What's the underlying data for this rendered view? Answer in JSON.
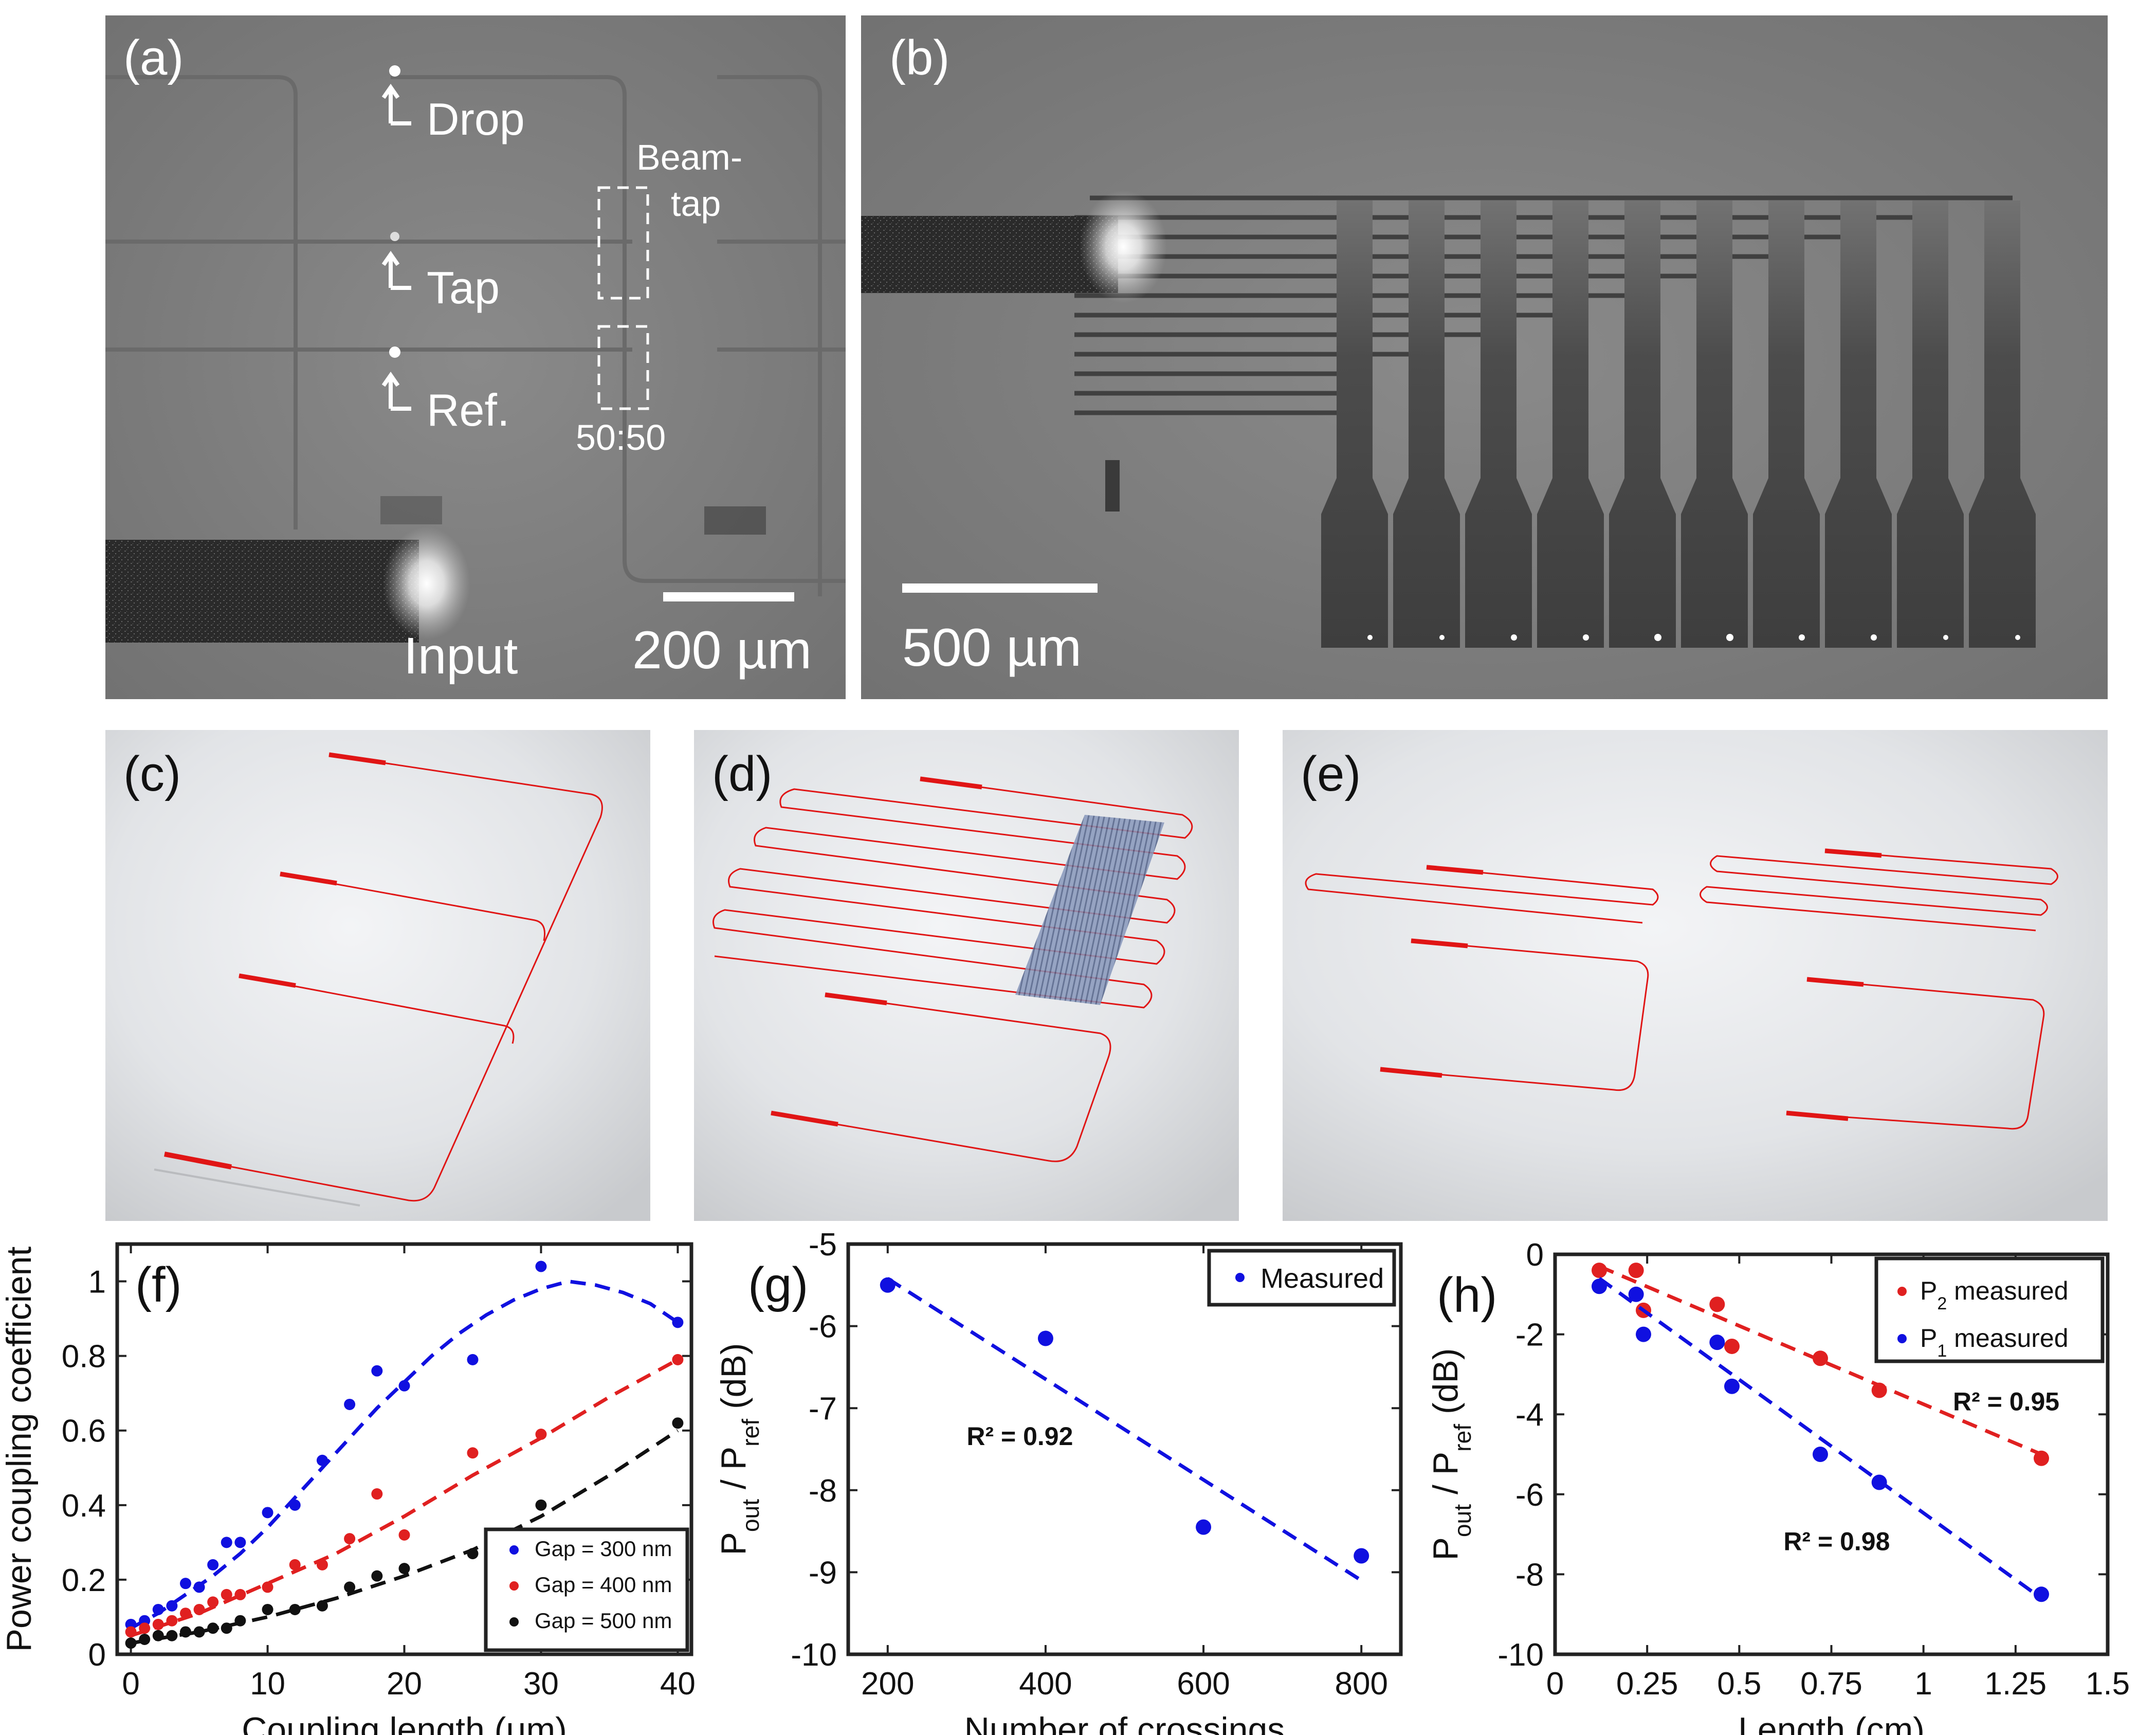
{
  "photos": {
    "a": {
      "tag": "(a)",
      "labels": {
        "drop": "Drop",
        "tap": "Tap",
        "ref": "Ref.",
        "input": "Input",
        "beam": "Beam-",
        "beam2": "tap",
        "split": "50:50"
      },
      "scalebar": "200 µm"
    },
    "b": {
      "tag": "(b)",
      "scalebar": "500 µm"
    }
  },
  "renders": {
    "c": {
      "tag": "(c)"
    },
    "d": {
      "tag": "(d)"
    },
    "e": {
      "tag": "(e)"
    }
  },
  "colors": {
    "blue": "#1010e0",
    "red": "#e02020",
    "black": "#111111",
    "waveguide": "#e01515",
    "grating": "#6a7fa6"
  },
  "chart_data": [
    {
      "tag": "(f)",
      "type": "scatter",
      "xlabel": "Coupling length (μm)",
      "ylabel": "Power coupling coefficient",
      "xlim": [
        -1,
        41
      ],
      "ylim": [
        0,
        1.1
      ],
      "xticks": [
        0,
        10,
        20,
        30,
        40
      ],
      "yticks": [
        0,
        0.2,
        0.4,
        0.6,
        0.8,
        1
      ],
      "ytick_labels": [
        "0",
        "0.2",
        "0.4",
        "0.6",
        "0.8",
        "1"
      ],
      "legend_position": "bottom-right",
      "series": [
        {
          "name": "Gap = 300 nm",
          "color": "#1010e0",
          "x": [
            0,
            1,
            2,
            3,
            4,
            5,
            6,
            7,
            8,
            10,
            12,
            14,
            16,
            18,
            20,
            25,
            30,
            40
          ],
          "y": [
            0.08,
            0.09,
            0.12,
            0.13,
            0.19,
            0.18,
            0.24,
            0.3,
            0.3,
            0.38,
            0.4,
            0.52,
            0.67,
            0.76,
            0.72,
            0.79,
            1.04,
            0.89
          ],
          "fit_x": [
            0,
            2,
            4,
            6,
            8,
            10,
            12,
            14,
            16,
            18,
            20,
            22,
            24,
            26,
            28,
            30,
            32,
            34,
            36,
            38,
            40
          ],
          "fit_y": [
            0.07,
            0.11,
            0.16,
            0.21,
            0.27,
            0.34,
            0.42,
            0.5,
            0.58,
            0.66,
            0.73,
            0.8,
            0.86,
            0.91,
            0.95,
            0.98,
            1.0,
            0.99,
            0.97,
            0.94,
            0.89
          ]
        },
        {
          "name": "Gap = 400 nm",
          "color": "#e02020",
          "x": [
            0,
            1,
            2,
            3,
            4,
            5,
            6,
            7,
            8,
            10,
            12,
            14,
            16,
            18,
            20,
            25,
            30,
            40
          ],
          "y": [
            0.06,
            0.07,
            0.08,
            0.09,
            0.11,
            0.12,
            0.14,
            0.16,
            0.16,
            0.18,
            0.24,
            0.24,
            0.31,
            0.43,
            0.32,
            0.54,
            0.59,
            0.79
          ],
          "fit_x": [
            0,
            5,
            10,
            15,
            20,
            25,
            30,
            35,
            40
          ],
          "fit_y": [
            0.05,
            0.11,
            0.19,
            0.27,
            0.37,
            0.48,
            0.58,
            0.69,
            0.79
          ]
        },
        {
          "name": "Gap = 500 nm",
          "color": "#111111",
          "x": [
            0,
            1,
            2,
            3,
            4,
            5,
            6,
            7,
            8,
            10,
            12,
            14,
            16,
            18,
            20,
            25,
            30,
            40
          ],
          "y": [
            0.03,
            0.04,
            0.05,
            0.05,
            0.06,
            0.06,
            0.07,
            0.07,
            0.09,
            0.12,
            0.12,
            0.13,
            0.18,
            0.21,
            0.23,
            0.27,
            0.4,
            0.62
          ],
          "fit_x": [
            0,
            5,
            10,
            15,
            20,
            25,
            30,
            35,
            40
          ],
          "fit_y": [
            0.03,
            0.06,
            0.1,
            0.15,
            0.21,
            0.28,
            0.37,
            0.48,
            0.6
          ]
        }
      ]
    },
    {
      "tag": "(g)",
      "type": "scatter",
      "xlabel": "Number of crossings",
      "ylabel_main": "P",
      "ylabel_sub1": "out",
      "ylabel_mid": " / P",
      "ylabel_sub2": "ref",
      "ylabel_end": " (dB)",
      "xlim": [
        150,
        850
      ],
      "ylim": [
        -10,
        -5
      ],
      "xticks": [
        200,
        400,
        600,
        800
      ],
      "yticks": [
        -10,
        -9,
        -8,
        -7,
        -6,
        -5
      ],
      "legend_position": "top-right",
      "annotation": {
        "r2": "R² = 0.92",
        "x": 300,
        "y": -7.45
      },
      "series": [
        {
          "name": "Measured",
          "color": "#1010e0",
          "x": [
            200,
            400,
            600,
            800
          ],
          "y": [
            -5.5,
            -6.15,
            -8.45,
            -8.8
          ],
          "fit_x": [
            200,
            800
          ],
          "fit_y": [
            -5.42,
            -9.1
          ]
        }
      ]
    },
    {
      "tag": "(h)",
      "type": "scatter",
      "xlabel": "Length (cm)",
      "ylabel_main": "P",
      "ylabel_sub1": "out",
      "ylabel_mid": " / P",
      "ylabel_sub2": "ref",
      "ylabel_end": " (dB)",
      "xlim": [
        0,
        1.5
      ],
      "ylim": [
        -10,
        0
      ],
      "xticks": [
        0,
        0.25,
        0.5,
        0.75,
        1,
        1.25,
        1.5
      ],
      "xtick_labels": [
        "0",
        "0.25",
        "0.5",
        "0.75",
        "1",
        "1.25",
        "1.5"
      ],
      "yticks": [
        -10,
        -8,
        -6,
        -4,
        -2,
        0
      ],
      "legend_position": "top-right",
      "annotations": [
        {
          "r2": "R² = 0.95",
          "x": 1.08,
          "y": -3.9
        },
        {
          "r2": "R² = 0.98",
          "x": 0.62,
          "y": -7.4
        }
      ],
      "series": [
        {
          "name": "P2 measured",
          "name_main": "P",
          "name_sub": "2",
          "name_rest": " measured",
          "color": "#e02020",
          "x": [
            0.12,
            0.22,
            0.24,
            0.44,
            0.48,
            0.72,
            0.88,
            1.32
          ],
          "y": [
            -0.4,
            -0.4,
            -1.4,
            -1.25,
            -2.3,
            -2.6,
            -3.4,
            -5.1
          ],
          "fit_x": [
            0.12,
            1.32
          ],
          "fit_y": [
            -0.3,
            -5.0
          ]
        },
        {
          "name": "P1 measured",
          "name_main": "P",
          "name_sub": "1",
          "name_rest": " measured",
          "color": "#1010e0",
          "x": [
            0.12,
            0.22,
            0.24,
            0.44,
            0.48,
            0.72,
            0.88,
            1.32
          ],
          "y": [
            -0.8,
            -1.0,
            -2.0,
            -2.2,
            -3.3,
            -5.0,
            -5.7,
            -8.5
          ],
          "fit_x": [
            0.12,
            1.32
          ],
          "fit_y": [
            -0.6,
            -8.6
          ]
        }
      ]
    }
  ]
}
